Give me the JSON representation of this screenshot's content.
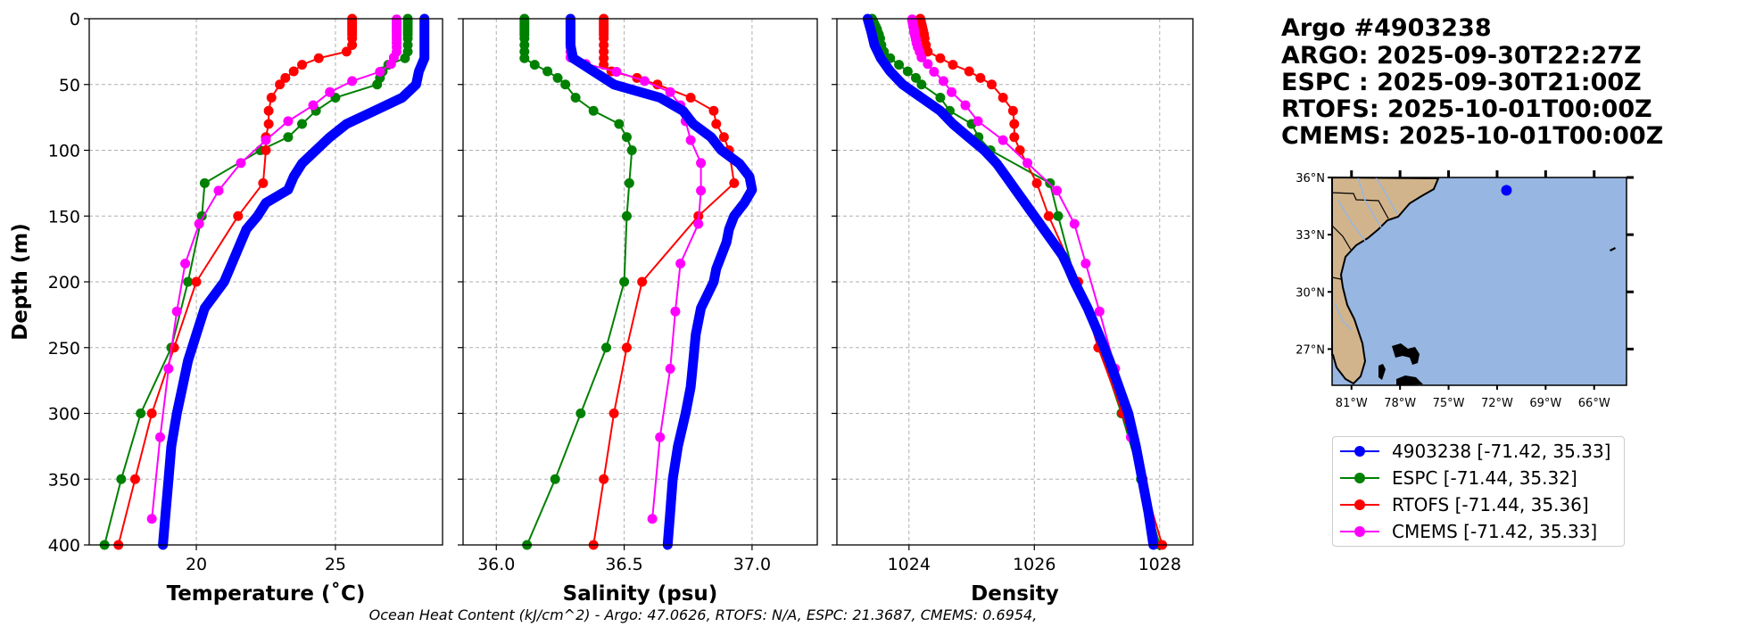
{
  "title_block": {
    "lines": [
      "Argo #4903238",
      "ARGO: 2025-09-30T22:27Z",
      "ESPC : 2025-09-30T21:00Z",
      "RTOFS: 2025-10-01T00:00Z",
      "CMEMS: 2025-10-01T00:00Z"
    ]
  },
  "footer": "Ocean Heat Content (kJ/cm^2) - Argo: 47.0626,  RTOFS: N/A,  ESPC: 21.3687,  CMEMS: 0.6954,",
  "legend": [
    {
      "label": "4903238 [-71.42, 35.33]",
      "color": "#0000ff"
    },
    {
      "label": "ESPC [-71.44, 35.32]",
      "color": "#008000"
    },
    {
      "label": "RTOFS [-71.44, 35.36]",
      "color": "#ff0000"
    },
    {
      "label": "CMEMS [-71.42, 35.33]",
      "color": "#ff00ff"
    }
  ],
  "depths": {
    "argo": [
      0,
      10,
      20,
      30,
      40,
      50,
      60,
      70,
      80,
      90,
      100,
      110,
      120,
      130,
      140,
      150,
      160,
      170,
      180,
      190,
      200,
      220,
      240,
      260,
      280,
      300,
      325,
      350,
      375,
      400
    ],
    "espc": [
      0,
      2,
      4,
      6,
      8,
      10,
      12,
      15,
      20,
      25,
      30,
      35,
      40,
      45,
      50,
      60,
      70,
      80,
      90,
      100,
      125,
      150,
      200,
      250,
      300,
      350,
      400
    ],
    "rtofs": [
      0,
      2,
      4,
      6,
      8,
      10,
      12,
      15,
      20,
      25,
      30,
      35,
      40,
      45,
      50,
      60,
      70,
      80,
      90,
      100,
      125,
      150,
      200,
      250,
      300,
      350,
      400
    ],
    "cmems": [
      0.5,
      1.5,
      2.6,
      3.8,
      5.1,
      6.4,
      7.9,
      9.6,
      11.4,
      13.5,
      15.8,
      18.5,
      21.6,
      25.2,
      29.4,
      34.4,
      40.3,
      47.4,
      55.8,
      65.8,
      77.9,
      92.3,
      109.7,
      130.7,
      155.9,
      186.1,
      222.5,
      266.0,
      318.1,
      380.2
    ]
  },
  "chart_data": [
    {
      "type": "line",
      "xlabel": "Temperature (˚C)",
      "ylabel": "Depth (m)",
      "xlim": [
        16.15,
        28.85
      ],
      "ylim": [
        400,
        0
      ],
      "xticks": [
        20,
        25
      ],
      "yticks": [
        0,
        50,
        100,
        150,
        200,
        250,
        300,
        350,
        400
      ],
      "grid": true,
      "series": [
        {
          "name": "ESPC",
          "key": "espc",
          "color": "#008000",
          "values": [
            27.6,
            27.6,
            27.6,
            27.6,
            27.6,
            27.6,
            27.6,
            27.6,
            27.6,
            27.6,
            27.5,
            26.9,
            26.7,
            26.6,
            26.5,
            25.0,
            24.3,
            23.8,
            23.3,
            22.3,
            20.3,
            20.2,
            19.7,
            19.1,
            18.0,
            17.3,
            16.7
          ]
        },
        {
          "name": "RTOFS",
          "key": "rtofs",
          "color": "#ff0000",
          "values": [
            25.6,
            25.6,
            25.6,
            25.6,
            25.6,
            25.6,
            25.6,
            25.6,
            25.6,
            25.4,
            24.4,
            23.8,
            23.5,
            23.2,
            23.0,
            22.7,
            22.6,
            22.6,
            22.5,
            22.5,
            22.4,
            21.5,
            20.0,
            19.2,
            18.4,
            17.8,
            17.2
          ]
        },
        {
          "name": "CMEMS",
          "key": "cmems",
          "color": "#ff00ff",
          "values": [
            27.2,
            27.2,
            27.2,
            27.2,
            27.2,
            27.2,
            27.2,
            27.2,
            27.2,
            27.2,
            27.2,
            27.2,
            27.2,
            27.2,
            27.1,
            27.0,
            26.6,
            25.6,
            24.8,
            24.2,
            23.3,
            22.5,
            21.6,
            20.8,
            20.1,
            19.6,
            19.3,
            19.0,
            18.7,
            18.4
          ]
        },
        {
          "name": "4903238",
          "key": "argo",
          "color": "#0000ff",
          "argo": true,
          "values": [
            28.2,
            28.2,
            28.2,
            28.2,
            28.0,
            27.9,
            27.4,
            26.4,
            25.4,
            24.8,
            24.3,
            23.8,
            23.5,
            23.3,
            22.5,
            22.2,
            21.8,
            21.6,
            21.4,
            21.2,
            21.0,
            20.3,
            20.0,
            19.7,
            19.5,
            19.3,
            19.1,
            19.0,
            18.9,
            18.8
          ]
        }
      ]
    },
    {
      "type": "line",
      "xlabel": "Salinity (psu)",
      "ylabel": "",
      "xlim": [
        35.87,
        37.255
      ],
      "ylim": [
        400,
        0
      ],
      "xticks": [
        36.0,
        36.5,
        37.0
      ],
      "yticks": [
        0,
        50,
        100,
        150,
        200,
        250,
        300,
        350,
        400
      ],
      "grid": true,
      "series": [
        {
          "name": "ESPC",
          "key": "espc",
          "color": "#008000",
          "values": [
            36.11,
            36.11,
            36.11,
            36.11,
            36.11,
            36.11,
            36.11,
            36.11,
            36.11,
            36.11,
            36.11,
            36.15,
            36.2,
            36.24,
            36.27,
            36.31,
            36.38,
            36.48,
            36.51,
            36.53,
            36.52,
            36.51,
            36.5,
            36.43,
            36.33,
            36.23,
            36.12
          ]
        },
        {
          "name": "RTOFS",
          "key": "rtofs",
          "color": "#ff0000",
          "values": [
            36.42,
            36.42,
            36.42,
            36.42,
            36.42,
            36.42,
            36.42,
            36.42,
            36.42,
            36.42,
            36.42,
            36.42,
            36.45,
            36.55,
            36.63,
            36.76,
            36.85,
            36.86,
            36.89,
            36.91,
            36.93,
            36.79,
            36.57,
            36.51,
            36.46,
            36.42,
            36.38
          ]
        },
        {
          "name": "CMEMS",
          "key": "cmems",
          "color": "#ff00ff",
          "values": [
            36.29,
            36.29,
            36.29,
            36.29,
            36.29,
            36.29,
            36.29,
            36.29,
            36.29,
            36.29,
            36.29,
            36.29,
            36.29,
            36.29,
            36.29,
            36.35,
            36.47,
            36.58,
            36.68,
            36.72,
            36.74,
            36.76,
            36.8,
            36.8,
            36.79,
            36.72,
            36.7,
            36.68,
            36.64,
            36.61
          ]
        },
        {
          "name": "4903238",
          "key": "argo",
          "color": "#0000ff",
          "argo": true,
          "values": [
            36.29,
            36.29,
            36.29,
            36.3,
            36.38,
            36.46,
            36.64,
            36.73,
            36.77,
            36.84,
            36.88,
            36.95,
            36.99,
            37.0,
            36.97,
            36.93,
            36.91,
            36.9,
            36.88,
            36.86,
            36.85,
            36.8,
            36.78,
            36.77,
            36.76,
            36.74,
            36.71,
            36.69,
            36.68,
            36.67
          ]
        }
      ]
    },
    {
      "type": "line",
      "xlabel": "Density",
      "ylabel": "",
      "xlim": [
        1022.85,
        1028.53
      ],
      "ylim": [
        400,
        0
      ],
      "xticks": [
        1024,
        1026,
        1028
      ],
      "yticks": [
        0,
        50,
        100,
        150,
        200,
        250,
        300,
        350,
        400
      ],
      "grid": true,
      "series": [
        {
          "name": "ESPC",
          "key": "espc",
          "color": "#008000",
          "values": [
            1023.41,
            1023.43,
            1023.45,
            1023.47,
            1023.49,
            1023.5,
            1023.52,
            1023.54,
            1023.56,
            1023.6,
            1023.7,
            1023.84,
            1023.98,
            1024.11,
            1024.2,
            1024.5,
            1024.65,
            1025.0,
            1025.11,
            1025.3,
            1026.25,
            1026.38,
            1026.66,
            1027.04,
            1027.39,
            1027.7,
            1028.0
          ]
        },
        {
          "name": "RTOFS",
          "key": "rtofs",
          "color": "#ff0000",
          "values": [
            1024.18,
            1024.19,
            1024.2,
            1024.21,
            1024.22,
            1024.23,
            1024.24,
            1024.25,
            1024.27,
            1024.3,
            1024.5,
            1024.7,
            1024.96,
            1025.14,
            1025.32,
            1025.5,
            1025.66,
            1025.68,
            1025.68,
            1025.77,
            1026.04,
            1026.23,
            1026.7,
            1027.02,
            1027.41,
            1027.73,
            1028.04
          ]
        },
        {
          "name": "CMEMS",
          "key": "cmems",
          "color": "#ff00ff",
          "values": [
            1024.05,
            1024.05,
            1024.06,
            1024.06,
            1024.07,
            1024.07,
            1024.08,
            1024.08,
            1024.09,
            1024.1,
            1024.11,
            1024.12,
            1024.14,
            1024.17,
            1024.2,
            1024.3,
            1024.4,
            1024.55,
            1024.68,
            1024.9,
            1025.1,
            1025.5,
            1025.89,
            1026.36,
            1026.64,
            1026.82,
            1027.04,
            1027.29,
            1027.54,
            1027.84
          ]
        },
        {
          "name": "4903238",
          "key": "argo",
          "color": "#0000ff",
          "argo": true,
          "values": [
            1023.34,
            1023.4,
            1023.45,
            1023.55,
            1023.7,
            1023.9,
            1024.2,
            1024.5,
            1024.7,
            1024.95,
            1025.2,
            1025.4,
            1025.55,
            1025.7,
            1025.85,
            1026.0,
            1026.15,
            1026.3,
            1026.45,
            1026.55,
            1026.64,
            1026.85,
            1027.03,
            1027.2,
            1027.35,
            1027.5,
            1027.62,
            1027.72,
            1027.82,
            1027.9
          ]
        }
      ]
    }
  ],
  "map": {
    "lon_range": [
      -82.2,
      -64.0
    ],
    "lat_range": [
      25.1,
      36.0
    ],
    "lat_ticks": [
      {
        "value": 36,
        "label": "36°N"
      },
      {
        "value": 33,
        "label": "33°N"
      },
      {
        "value": 30,
        "label": "30°N"
      },
      {
        "value": 27,
        "label": "27°N"
      }
    ],
    "lon_ticks": [
      {
        "value": -81,
        "label": "81°W"
      },
      {
        "value": -78,
        "label": "78°W"
      },
      {
        "value": -75,
        "label": "75°W"
      },
      {
        "value": -72,
        "label": "72°W"
      },
      {
        "value": -69,
        "label": "69°W"
      },
      {
        "value": -66,
        "label": "66°W"
      }
    ],
    "float": {
      "lon": -71.42,
      "lat": 35.33,
      "color": "#0000ff"
    },
    "ocean_color": "#97b6e1",
    "land_color": "#d2b48c"
  }
}
